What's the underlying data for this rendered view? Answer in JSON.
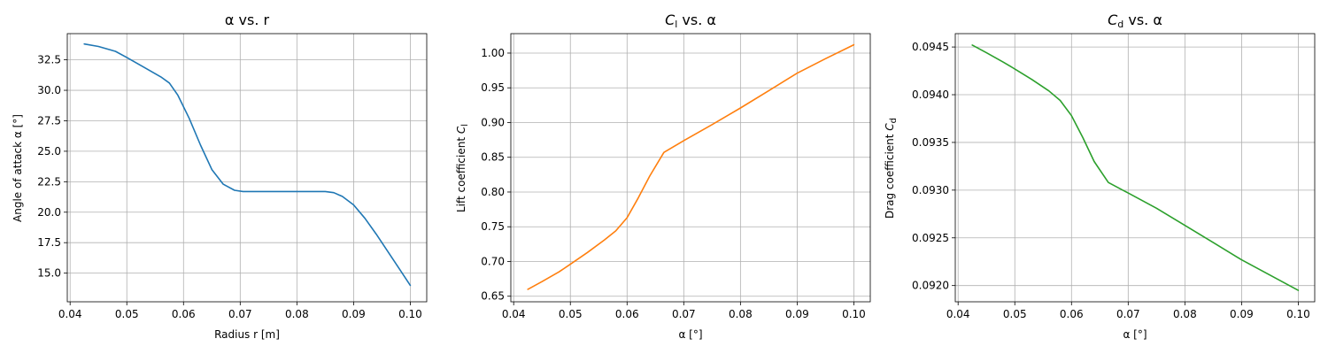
{
  "chart_data": [
    {
      "type": "line",
      "title": "α vs. r",
      "title_main": "α vs. r",
      "title_italic": "",
      "title_sub": "",
      "title_suffix": "",
      "xlabel": "Radius r [m]",
      "ylabel": "Angle of attack α [°]",
      "ylabel_main": "Angle of attack α [°]",
      "ylabel_italic": "",
      "ylabel_sub": "",
      "xlim": [
        0.0395,
        0.1029
      ],
      "ylim": [
        12.65,
        34.65
      ],
      "grid": true,
      "x_ticks": [
        0.04,
        0.05,
        0.06,
        0.07,
        0.08,
        0.09,
        0.1
      ],
      "x_tick_labels": [
        "0.04",
        "0.05",
        "0.06",
        "0.07",
        "0.08",
        "0.09",
        "0.10"
      ],
      "y_ticks": [
        15.0,
        17.5,
        20.0,
        22.5,
        25.0,
        27.5,
        30.0,
        32.5
      ],
      "y_tick_labels": [
        "15.0",
        "17.5",
        "20.0",
        "22.5",
        "25.0",
        "27.5",
        "30.0",
        "32.5"
      ],
      "series": [
        {
          "color": "#1f77b4",
          "x": [
            0.0425,
            0.045,
            0.048,
            0.05,
            0.053,
            0.056,
            0.0575,
            0.059,
            0.061,
            0.063,
            0.065,
            0.067,
            0.069,
            0.0705,
            0.072,
            0.075,
            0.08,
            0.085,
            0.0865,
            0.088,
            0.09,
            0.092,
            0.094,
            0.096,
            0.098,
            0.1
          ],
          "y": [
            33.8,
            33.6,
            33.2,
            32.7,
            31.9,
            31.1,
            30.6,
            29.6,
            27.7,
            25.5,
            23.5,
            22.3,
            21.8,
            21.7,
            21.7,
            21.7,
            21.7,
            21.7,
            21.6,
            21.3,
            20.6,
            19.5,
            18.2,
            16.8,
            15.4,
            14.0
          ]
        }
      ]
    },
    {
      "type": "line",
      "title": "Cl vs. α",
      "title_main": "",
      "title_italic": "C",
      "title_sub": "l",
      "title_suffix": " vs. α",
      "xlabel": "α [°]",
      "ylabel": "Lift coefficient Cl",
      "ylabel_main": "Lift coefficient ",
      "ylabel_italic": "C",
      "ylabel_sub": "l",
      "xlim": [
        0.0395,
        0.1029
      ],
      "ylim": [
        0.642,
        1.028
      ],
      "grid": true,
      "x_ticks": [
        0.04,
        0.05,
        0.06,
        0.07,
        0.08,
        0.09,
        0.1
      ],
      "x_tick_labels": [
        "0.04",
        "0.05",
        "0.06",
        "0.07",
        "0.08",
        "0.09",
        "0.10"
      ],
      "y_ticks": [
        0.65,
        0.7,
        0.75,
        0.8,
        0.85,
        0.9,
        0.95,
        1.0
      ],
      "y_tick_labels": [
        "0.65",
        "0.70",
        "0.75",
        "0.80",
        "0.85",
        "0.90",
        "0.95",
        "1.00"
      ],
      "series": [
        {
          "color": "#ff7f0e",
          "x": [
            0.0425,
            0.045,
            0.048,
            0.05,
            0.053,
            0.056,
            0.058,
            0.06,
            0.062,
            0.064,
            0.0665,
            0.07,
            0.075,
            0.08,
            0.085,
            0.09,
            0.095,
            0.1
          ],
          "y": [
            0.66,
            0.671,
            0.685,
            0.696,
            0.713,
            0.731,
            0.744,
            0.763,
            0.792,
            0.823,
            0.857,
            0.874,
            0.897,
            0.921,
            0.946,
            0.971,
            0.992,
            1.012
          ]
        }
      ]
    },
    {
      "type": "line",
      "title": "Cd vs. α",
      "title_main": "",
      "title_italic": "C",
      "title_sub": "d",
      "title_suffix": " vs. α",
      "xlabel": "α [°]",
      "ylabel": "Drag coefficient Cd",
      "ylabel_main": "Drag coefficient ",
      "ylabel_italic": "C",
      "ylabel_sub": "d",
      "xlim": [
        0.0395,
        0.1029
      ],
      "ylim": [
        0.09183,
        0.09464
      ],
      "grid": true,
      "x_ticks": [
        0.04,
        0.05,
        0.06,
        0.07,
        0.08,
        0.09,
        0.1
      ],
      "x_tick_labels": [
        "0.04",
        "0.05",
        "0.06",
        "0.07",
        "0.08",
        "0.09",
        "0.10"
      ],
      "y_ticks": [
        0.092,
        0.0925,
        0.093,
        0.0935,
        0.094,
        0.0945
      ],
      "y_tick_labels": [
        "0.0920",
        "0.0925",
        "0.0930",
        "0.0935",
        "0.0940",
        "0.0945"
      ],
      "series": [
        {
          "color": "#2ca02c",
          "x": [
            0.0425,
            0.045,
            0.048,
            0.05,
            0.053,
            0.056,
            0.058,
            0.06,
            0.062,
            0.064,
            0.0665,
            0.07,
            0.075,
            0.08,
            0.085,
            0.09,
            0.095,
            0.1
          ],
          "y": [
            0.09452,
            0.09444,
            0.09434,
            0.09427,
            0.09416,
            0.09404,
            0.09394,
            0.09378,
            0.09355,
            0.0933,
            0.09308,
            0.09297,
            0.09281,
            0.09263,
            0.09245,
            0.09227,
            0.09211,
            0.09195
          ]
        }
      ]
    }
  ]
}
